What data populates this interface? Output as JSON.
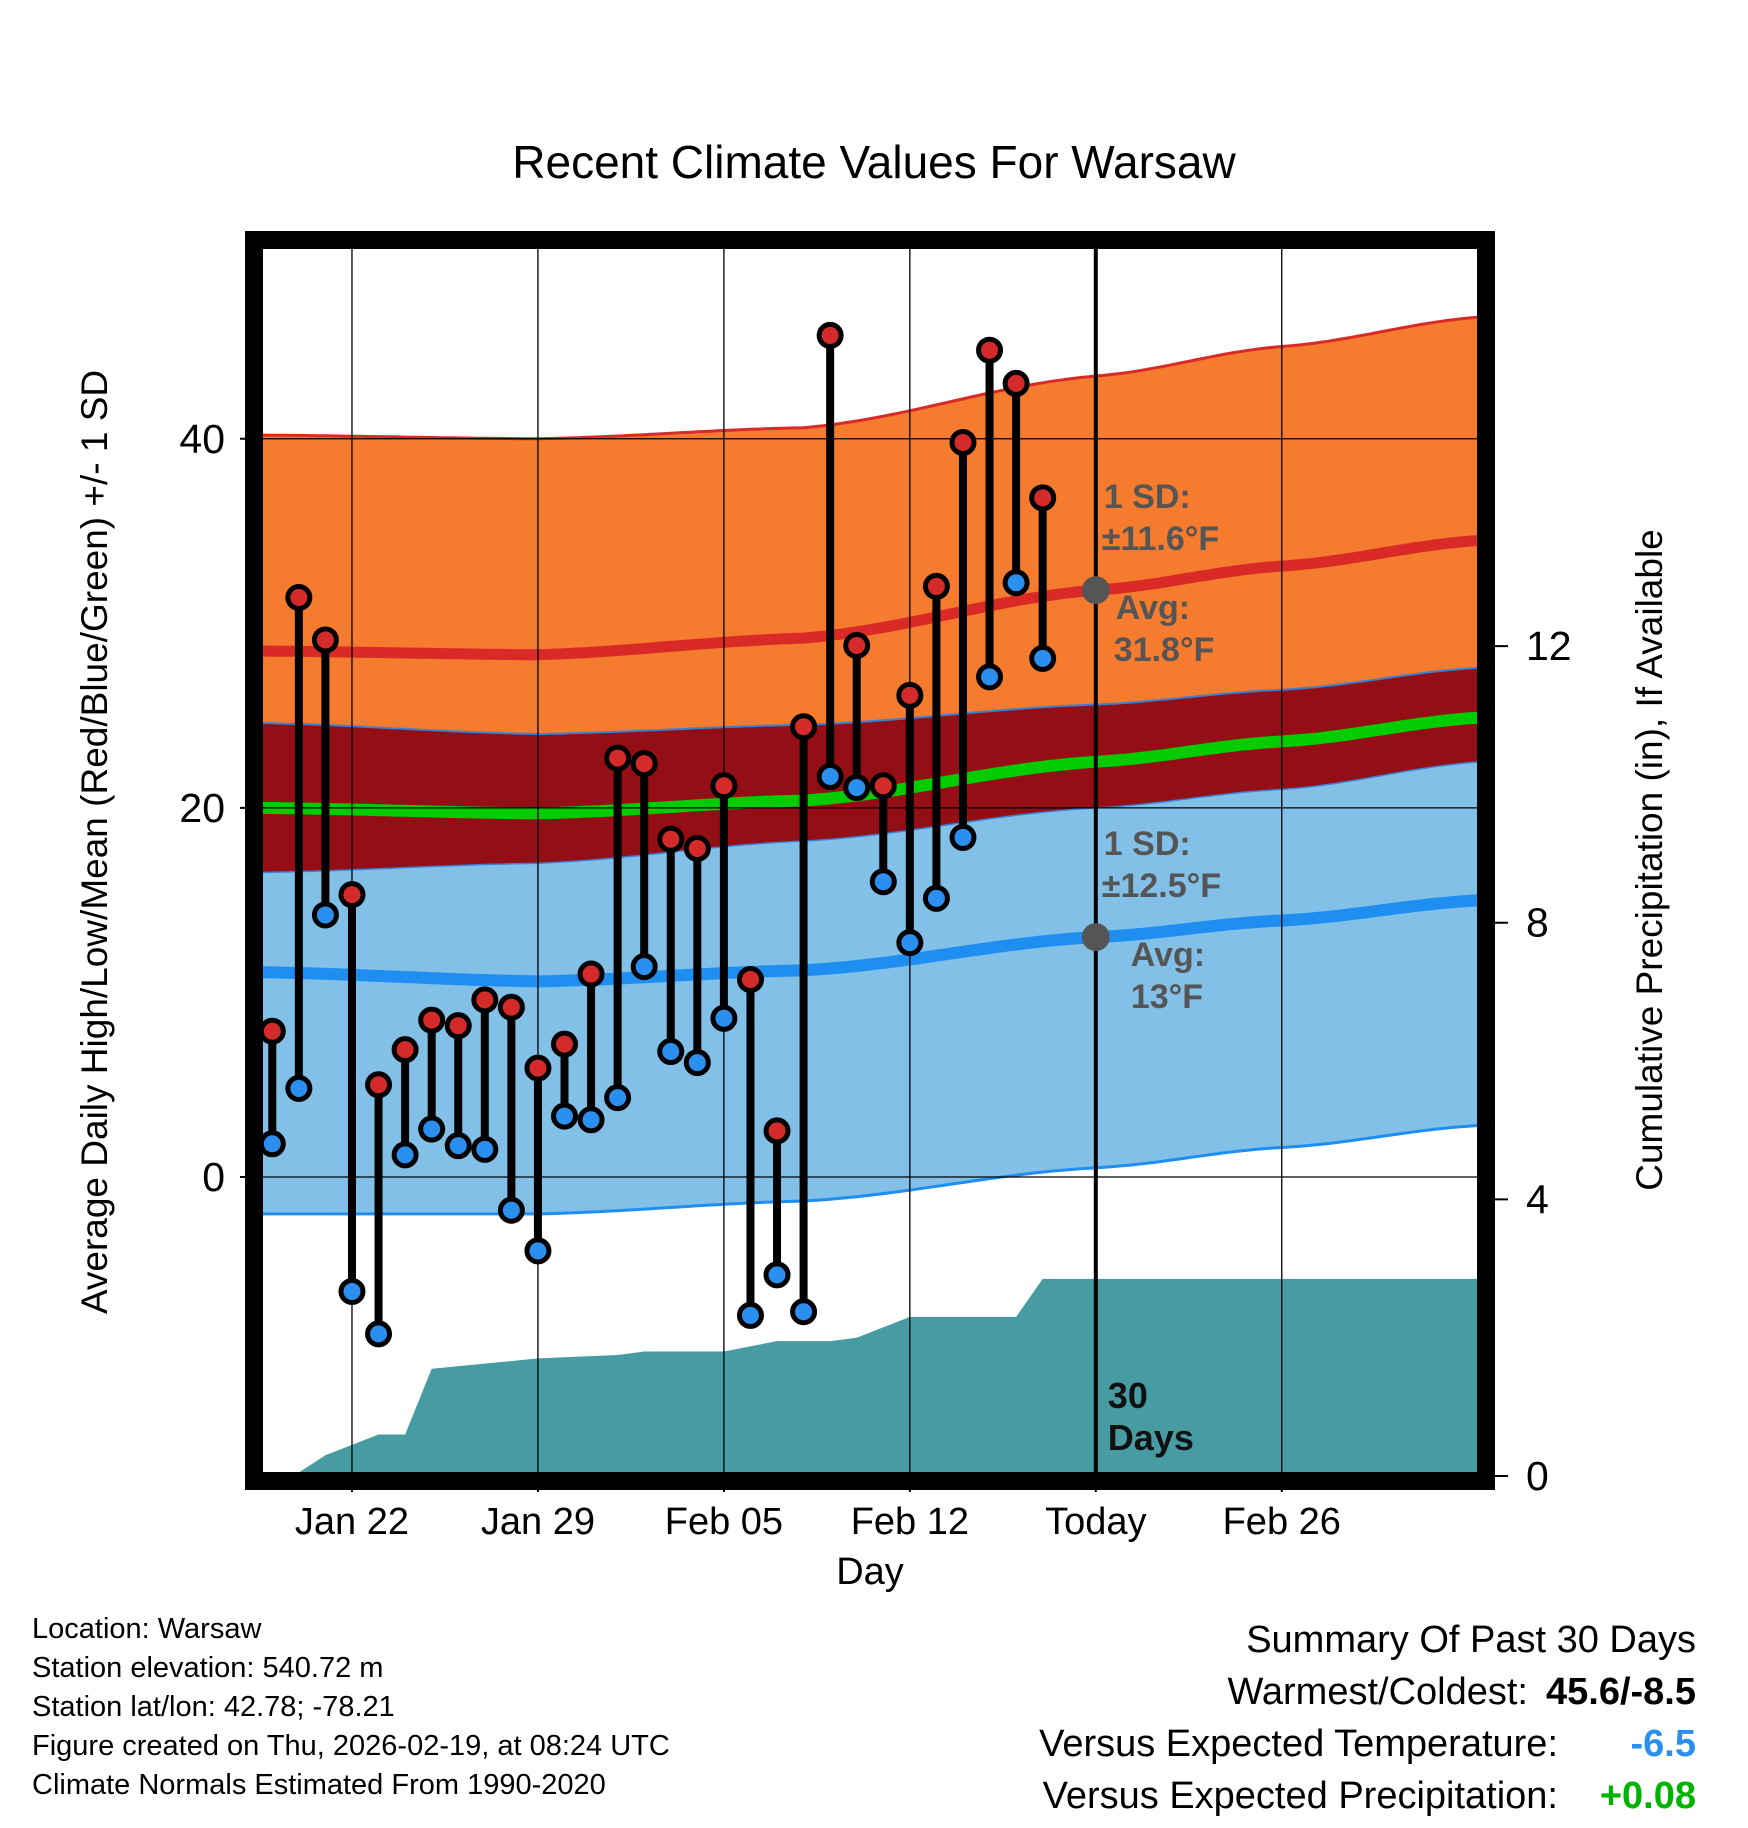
{
  "title": "Recent Climate Values For Warsaw",
  "y_left_label": "Average Daily High/Low/Mean (Red/Blue/Green) +/- 1 SD",
  "y_right_label": "Cumulative Precipitation (in), If Available",
  "x_label": "Day",
  "footer": {
    "location": "Location: Warsaw",
    "elevation": "Station elevation: 540.72 m",
    "latlon": "Station lat/lon: 42.78; -78.21",
    "created": "Figure created on Thu, 2026-02-19, at 08:24 UTC",
    "normals": "Climate Normals Estimated From 1990-2020"
  },
  "summary": {
    "heading": "Summary Of Past 30 Days",
    "warm_cold_label": "Warmest/Coldest:",
    "warm_cold_value": "45.6/-8.5",
    "temp_label": "Versus Expected Temperature:",
    "temp_value": "-6.5",
    "precip_label": "Versus Expected Precipitation:",
    "precip_value": "+0.08"
  },
  "colors": {
    "high_band": "#f57b2e",
    "overlap_band": "#930f15",
    "low_band": "#82c0e8",
    "high_line": "#d92a27",
    "low_line": "#1e8ef0",
    "mean_line": "#00cc00",
    "precip": "#479ca3",
    "high_dot": "#d42a2a",
    "low_dot": "#2b8ff0",
    "avg_dot": "#555555",
    "annotation": "#555555",
    "neg_value": "#2b8ff0",
    "pos_value": "#00b300"
  },
  "chart_data": {
    "type": "line",
    "x_domain": [
      -0.5,
      45.5
    ],
    "ylim": [
      -16.2,
      50.5
    ],
    "y_ticks": [
      0,
      20,
      40
    ],
    "y_minor_ticks": [
      -10,
      10,
      30,
      50
    ],
    "y_right_lim": [
      0,
      17.8
    ],
    "y_right_ticks": [
      0,
      4,
      8,
      12
    ],
    "x_ticks": [
      {
        "day": 3,
        "label": "Jan 22"
      },
      {
        "day": 10,
        "label": "Jan 29"
      },
      {
        "day": 17,
        "label": "Feb 05"
      },
      {
        "day": 24,
        "label": "Feb 12"
      },
      {
        "day": 31,
        "label": "Today"
      },
      {
        "day": 38,
        "label": "Feb 26"
      }
    ],
    "today_day": 31,
    "normals_days": [
      -0.5,
      10,
      20,
      31,
      38,
      45.5
    ],
    "normal_high_mean": [
      28.5,
      28.3,
      29.2,
      31.8,
      33.1,
      34.5
    ],
    "normal_high_upper": [
      40.2,
      40.0,
      40.6,
      43.4,
      45.0,
      46.6
    ],
    "normal_high_lower": [
      24.6,
      24.0,
      24.5,
      25.6,
      26.4,
      27.6
    ],
    "normal_mean": [
      20.0,
      19.7,
      20.4,
      22.5,
      23.6,
      24.9
    ],
    "normal_low_mean": [
      11.1,
      10.6,
      11.2,
      13.0,
      13.9,
      15.0
    ],
    "normal_low_upper": [
      16.5,
      17.0,
      18.2,
      20.0,
      21.0,
      22.5
    ],
    "normal_low_lower": [
      -2.0,
      -2.0,
      -1.3,
      0.5,
      1.6,
      2.8
    ],
    "days": [
      0,
      1,
      2,
      3,
      4,
      5,
      6,
      7,
      8,
      9,
      10,
      11,
      12,
      13,
      14,
      15,
      16,
      17,
      18,
      19,
      20,
      21,
      22,
      23,
      24,
      25,
      26,
      27,
      28,
      29,
      30
    ],
    "highs": [
      7.9,
      31.4,
      29.1,
      15.3,
      5.0,
      6.9,
      8.5,
      8.2,
      9.6,
      9.2,
      5.9,
      7.2,
      11.0,
      22.7,
      22.4,
      18.3,
      17.8,
      21.2,
      10.7,
      2.5,
      24.4,
      45.6,
      28.8,
      21.2,
      26.1,
      32.0,
      39.8,
      44.8,
      43.0,
      36.8,
      null
    ],
    "lows": [
      1.8,
      4.8,
      14.2,
      -6.2,
      -8.5,
      1.2,
      2.6,
      1.7,
      1.5,
      -1.8,
      -4.0,
      3.3,
      3.1,
      4.3,
      11.4,
      6.8,
      6.2,
      8.6,
      -7.5,
      -5.3,
      -7.3,
      21.7,
      21.1,
      16.0,
      12.7,
      15.1,
      18.4,
      27.1,
      32.2,
      28.1,
      null
    ],
    "precip_days": [
      -0.5,
      0,
      1,
      2,
      3,
      4,
      5,
      6,
      10,
      13,
      14,
      17,
      19,
      21,
      22,
      23,
      24,
      25,
      27,
      28,
      29,
      30,
      45.5
    ],
    "precip": [
      0.0,
      0.05,
      0.05,
      0.3,
      0.45,
      0.6,
      0.6,
      1.55,
      1.7,
      1.75,
      1.8,
      1.8,
      1.95,
      1.95,
      2.0,
      2.15,
      2.3,
      2.3,
      2.3,
      2.3,
      2.85,
      2.85,
      2.85
    ],
    "high_avg_annotation": {
      "sd_label": "1 SD:",
      "sd_value": "±11.6°F",
      "avg_label": "Avg:",
      "avg_value": "31.8°F",
      "value": 31.8
    },
    "low_avg_annotation": {
      "sd_label": "1 SD:",
      "sd_value": "±12.5°F",
      "avg_label": "Avg:",
      "avg_value": "13°F",
      "value": 13.0
    },
    "days_annotation": {
      "number": "30",
      "unit": "Days"
    }
  }
}
